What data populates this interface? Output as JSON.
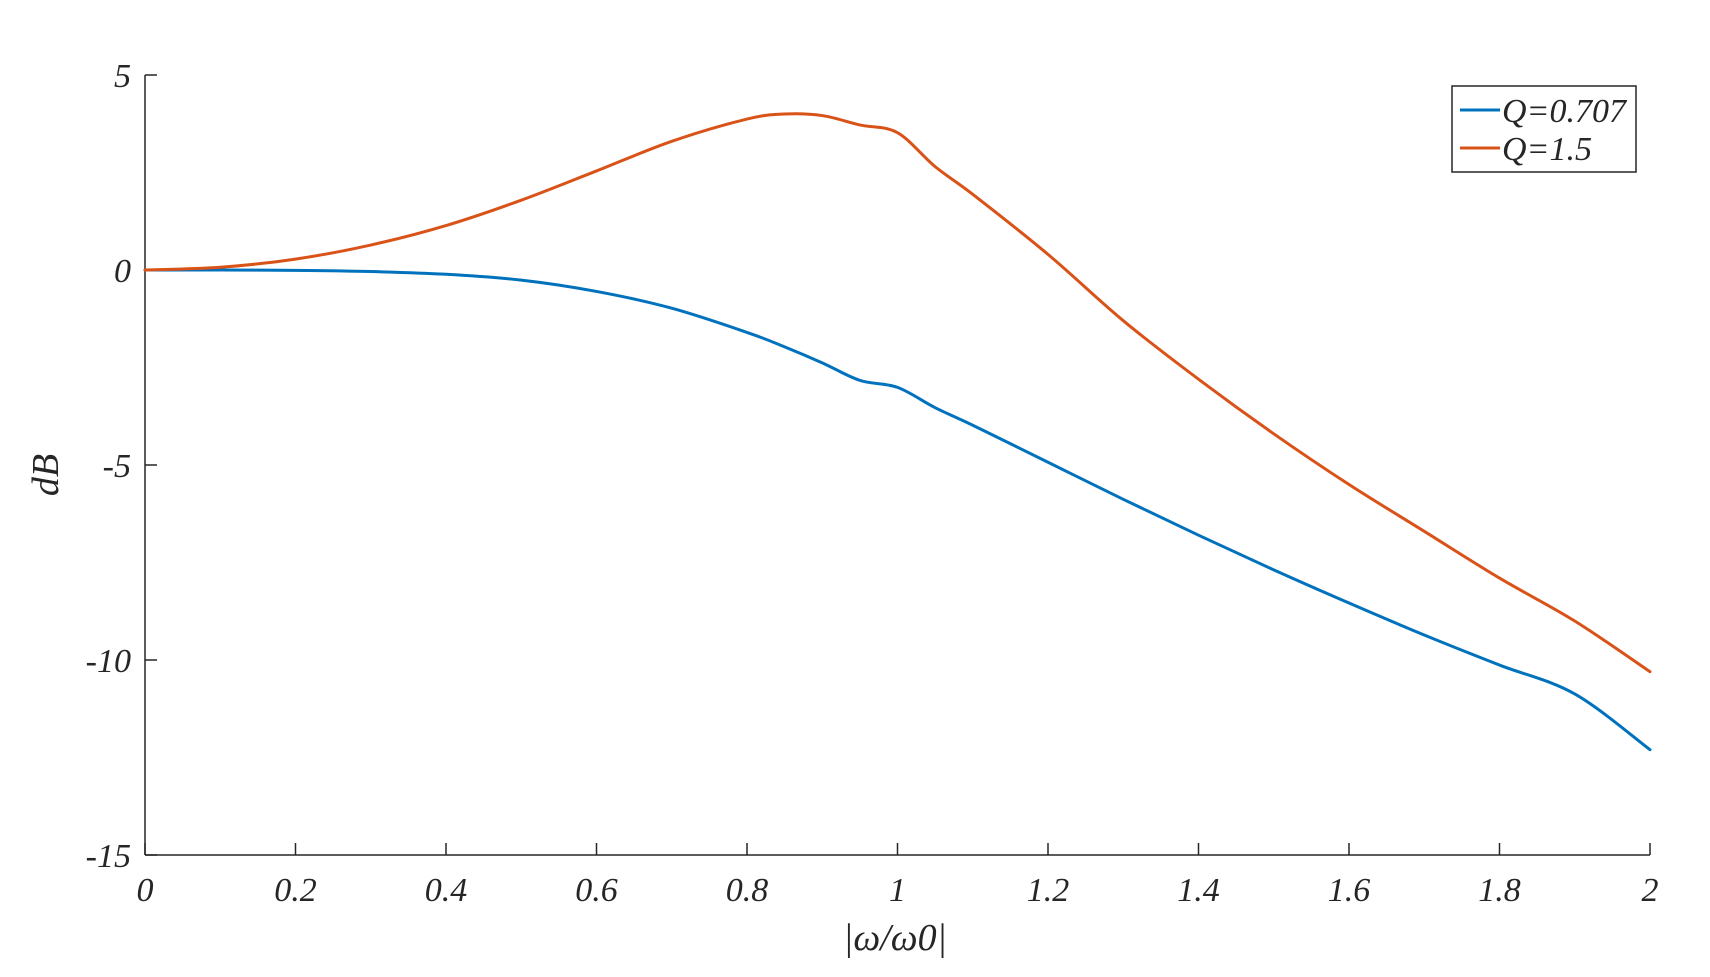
{
  "chart_data": {
    "type": "line",
    "title": "",
    "xlabel": "|ω/ω0|",
    "ylabel": "dB",
    "xlim": [
      0,
      2
    ],
    "ylim": [
      -15,
      5
    ],
    "xticks": [
      0,
      0.2,
      0.4,
      0.6,
      0.8,
      1,
      1.2,
      1.4,
      1.6,
      1.8,
      2
    ],
    "xtick_labels": [
      "0",
      "0.2",
      "0.4",
      "0.6",
      "0.8",
      "1",
      "1.2",
      "1.4",
      "1.6",
      "1.8",
      "2"
    ],
    "yticks": [
      -15,
      -10,
      -5,
      0,
      5
    ],
    "ytick_labels": [
      "-15",
      "-10",
      "-5",
      "0",
      "5"
    ],
    "grid": false,
    "legend_position": "top-right",
    "x": [
      0,
      0.1,
      0.2,
      0.3,
      0.4,
      0.5,
      0.6,
      0.7,
      0.8,
      0.85,
      0.9,
      0.95,
      1.0,
      1.05,
      1.1,
      1.2,
      1.3,
      1.4,
      1.5,
      1.6,
      1.7,
      1.8,
      1.9,
      2.0
    ],
    "series": [
      {
        "name": "Q=0.707",
        "color": "#0072BD",
        "values": [
          0,
          0,
          -0.01,
          -0.04,
          -0.11,
          -0.26,
          -0.55,
          -0.98,
          -1.6,
          -1.97,
          -2.38,
          -2.83,
          -3.01,
          -3.53,
          -3.98,
          -4.93,
          -5.88,
          -6.8,
          -7.69,
          -8.54,
          -9.36,
          -10.13,
          -10.87,
          -12.3
        ]
      },
      {
        "name": "Q=1.5",
        "color": "#D95319",
        "values": [
          0,
          0.07,
          0.28,
          0.64,
          1.14,
          1.79,
          2.54,
          3.3,
          3.87,
          4.0,
          3.96,
          3.72,
          3.52,
          2.65,
          1.94,
          0.4,
          -1.3,
          -2.8,
          -4.2,
          -5.5,
          -6.7,
          -7.9,
          -9.0,
          -10.3
        ]
      }
    ]
  }
}
